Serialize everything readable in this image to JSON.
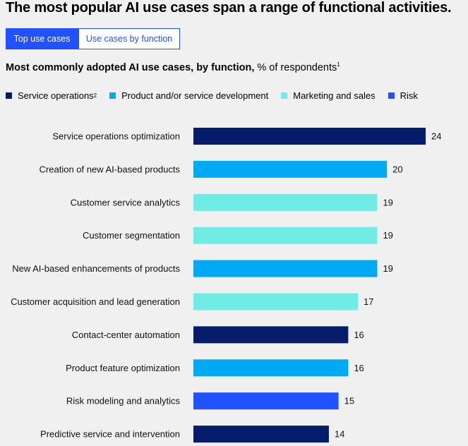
{
  "headline": "The most popular AI use cases span a range of functional activities.",
  "tabs": [
    {
      "label": "Top use cases",
      "active": true
    },
    {
      "label": "Use cases by function",
      "active": false
    }
  ],
  "subtitle": {
    "bold": "Most commonly adopted AI use cases, by function,",
    "rest": " % of respondents",
    "footnote": "1"
  },
  "legend": [
    {
      "label": "Service operations",
      "footnote": "2",
      "color": "#051c6b"
    },
    {
      "label": "Product and/or service development",
      "footnote": "",
      "color": "#00a9f4"
    },
    {
      "label": "Marketing and sales",
      "footnote": "",
      "color": "#71ece4"
    },
    {
      "label": "Risk",
      "footnote": "",
      "color": "#2251ff"
    }
  ],
  "chart_data": {
    "type": "bar",
    "orientation": "horizontal",
    "title": "Most commonly adopted AI use cases, by function, % of respondents",
    "xlabel": "% of respondents",
    "ylabel": "",
    "xlim": [
      0,
      24
    ],
    "categories": [
      "Service operations optimization",
      "Creation of new AI-based products",
      "Customer service analytics",
      "Customer segmentation",
      "New AI-based enhancements of products",
      "Customer acquisition and lead generation",
      "Contact-center automation",
      "Product feature optimization",
      "Risk modeling and analytics",
      "Predictive service and intervention"
    ],
    "values": [
      24,
      20,
      19,
      19,
      19,
      17,
      16,
      16,
      15,
      14
    ],
    "functions": [
      "Service operations",
      "Product and/or service development",
      "Marketing and sales",
      "Marketing and sales",
      "Product and/or service development",
      "Marketing and sales",
      "Service operations",
      "Product and/or service development",
      "Risk",
      "Service operations"
    ]
  }
}
